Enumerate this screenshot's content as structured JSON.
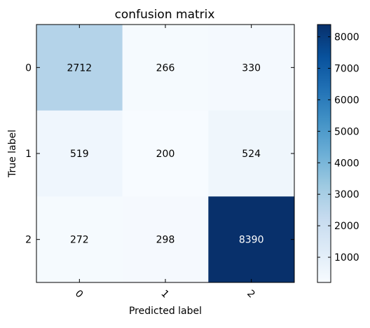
{
  "chart_data": {
    "type": "heatmap",
    "title": "confusion matrix",
    "xlabel": "Predicted label",
    "ylabel": "True label",
    "x_categories": [
      "0",
      "1",
      "2"
    ],
    "y_categories": [
      "0",
      "1",
      "2"
    ],
    "values": [
      [
        2712,
        266,
        330
      ],
      [
        519,
        200,
        524
      ],
      [
        272,
        298,
        8390
      ]
    ],
    "colormap": "Blues",
    "colorbar": {
      "range": [
        200,
        8390
      ],
      "ticks": [
        1000,
        2000,
        3000,
        4000,
        5000,
        6000,
        7000,
        8000
      ]
    },
    "cell_text_light_color": "#ffffff",
    "cell_text_dark_color": "#000000"
  }
}
